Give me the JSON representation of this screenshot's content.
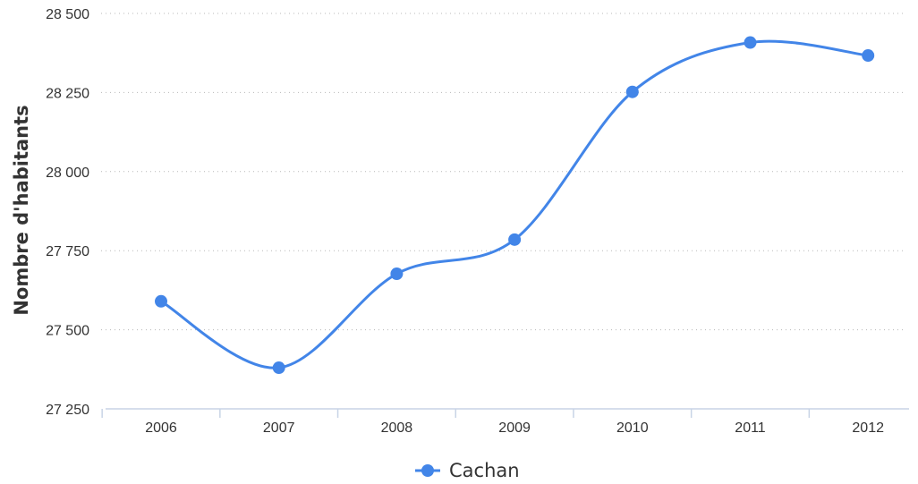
{
  "chart_data": {
    "type": "line",
    "title": "",
    "xlabel": "",
    "ylabel": "Nombre d'habitants",
    "categories": [
      "2006",
      "2007",
      "2008",
      "2009",
      "2010",
      "2011",
      "2012"
    ],
    "series": [
      {
        "name": "Cachan",
        "color": "#4285e8",
        "values": [
          27590,
          27380,
          27677,
          27785,
          28252,
          28408,
          28367
        ]
      }
    ],
    "ylim": [
      27250,
      28500
    ],
    "yticks": [
      27250,
      27500,
      27750,
      28000,
      28250,
      28500
    ],
    "ytick_labels": [
      "27 250",
      "27 500",
      "27 750",
      "28 000",
      "28 250",
      "28 500"
    ],
    "grid": true,
    "legend_position": "bottom-center",
    "smooth": true
  }
}
